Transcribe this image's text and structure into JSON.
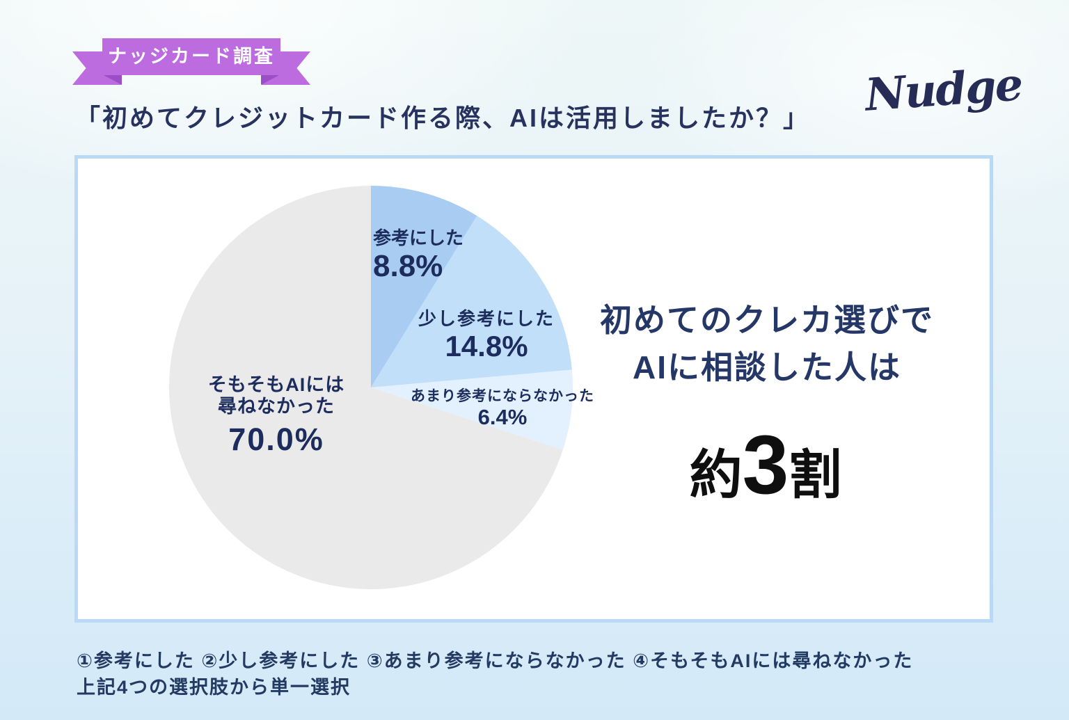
{
  "badge": {
    "label": "ナッジカード調査"
  },
  "title": "「初めてクレジットカード作る際、AIは活用しましたか？」",
  "logo": {
    "text": "Nudge"
  },
  "chart_data": {
    "type": "pie",
    "title": "初めてクレジットカード作る際、AIは活用しましたか？",
    "start_angle_deg": 0,
    "direction": "clockwise",
    "legend_position": "on-slices",
    "slices": [
      {
        "label": "参考にした",
        "value": 8.8,
        "display": "8.8%",
        "color": "#a9ccf3"
      },
      {
        "label": "少し参考にした",
        "value": 14.8,
        "display": "14.8%",
        "color": "#c2dff9"
      },
      {
        "label": "あまり参考にならなかった",
        "value": 6.4,
        "display": "6.4%",
        "color": "#e3f0fd"
      },
      {
        "label": "そもそもAIには尋ねなかった",
        "label_lines": [
          "そもそもAIには",
          "尋ねなかった"
        ],
        "value": 70.0,
        "display": "70.0%",
        "color": "#eaeaeb"
      }
    ]
  },
  "highlight": {
    "line1": "初めてのクレカ選びで",
    "line2": "AIに相談した人は",
    "big_prefix": "約",
    "big_number": "3",
    "big_suffix": "割"
  },
  "footnote": {
    "line1": "①参考にした ②少し参考にした ③あまり参考にならなかった ④そもそもAIには尋ねなかった",
    "line2": "上記4つの選択肢から単一選択"
  },
  "colors": {
    "ribbon": "#bd6ce0",
    "ribbon_fold": "#9c4ec6",
    "navy_text": "#243767",
    "black_text": "#0f0f0f",
    "card_border": "#b9d9f7",
    "background_top": "#eef7f7",
    "background_bottom": "#d3e9f7"
  }
}
